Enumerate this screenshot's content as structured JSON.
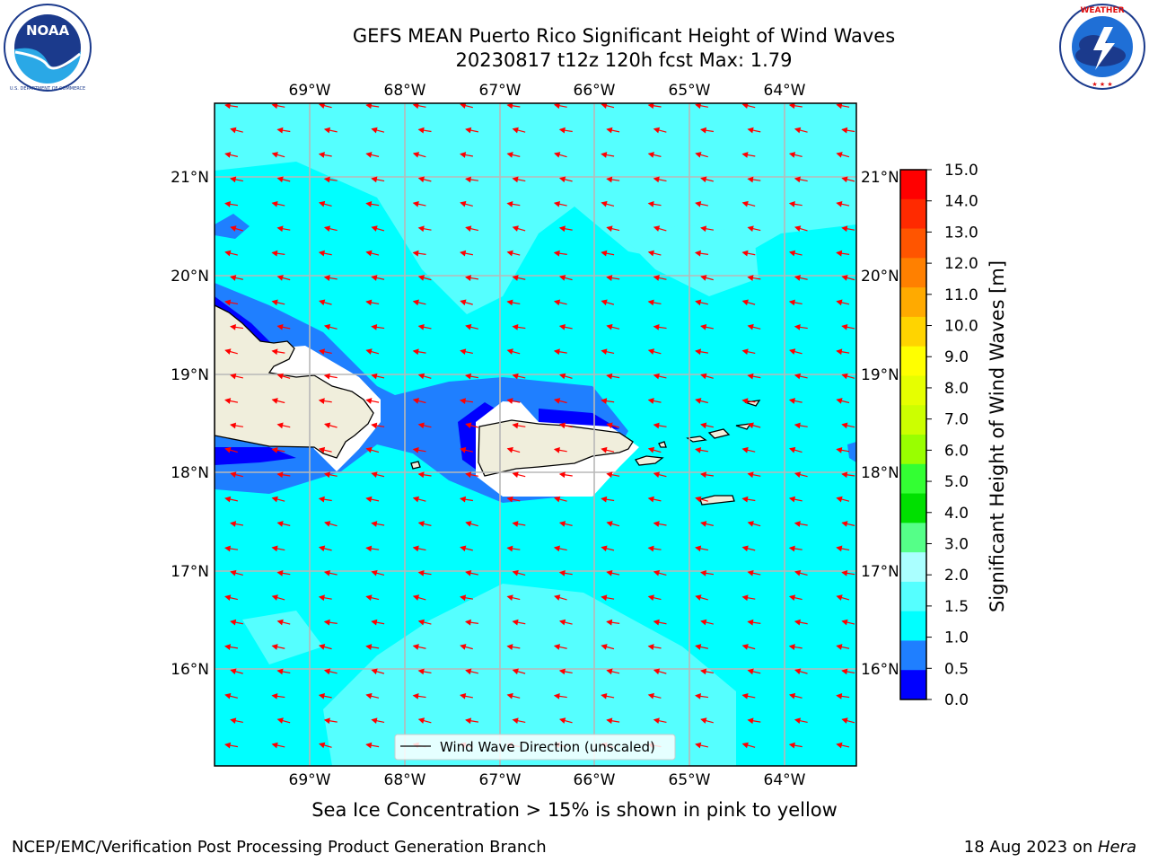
{
  "header": {
    "title_line1": "GEFS MEAN Puerto Rico Significant Height of Wind Waves",
    "title_line2": "20230817 t12z 120h fcst   Max: 1.79"
  },
  "logos": {
    "left": {
      "text": "NOAA",
      "ring_text": "NATIONAL OCEANIC AND ATMOSPHERIC ADMINISTRATION · U.S. DEPARTMENT OF COMMERCE"
    },
    "right": {
      "ring_text": "NATIONAL WEATHER SERVICE"
    }
  },
  "map": {
    "lon_labels": [
      "69°W",
      "68°W",
      "67°W",
      "66°W",
      "65°W",
      "64°W"
    ],
    "lat_labels": [
      "21°N",
      "20°N",
      "19°N",
      "18°N",
      "17°N",
      "16°N"
    ],
    "legend_label": "Wind Wave Direction (unscaled)",
    "colors": {
      "sea_1_1p5": "#00ffff",
      "sea_1p5_2": "#55ffff",
      "sea_0p5_1": "#1f7fff",
      "sea_0_0p5": "#0000ff",
      "land": "#f0eedc",
      "arrow": "#ff0000"
    }
  },
  "colorbar": {
    "label": "Significant Height of Wind Waves [m]",
    "ticks": [
      "15.0",
      "14.0",
      "13.0",
      "12.0",
      "11.0",
      "10.0",
      "9.0",
      "8.0",
      "7.0",
      "6.0",
      "5.0",
      "4.0",
      "3.0",
      "2.0",
      "1.5",
      "1.0",
      "0.5",
      "0.0"
    ],
    "colors": [
      "#ff0000",
      "#ff2a00",
      "#ff5500",
      "#ff8000",
      "#ffaa00",
      "#ffd400",
      "#ffff00",
      "#e6ff00",
      "#ccff00",
      "#99ff00",
      "#33ff33",
      "#00e000",
      "#55ff88",
      "#aaffff",
      "#55ffff",
      "#00ffff",
      "#1f7fff",
      "#0000ff"
    ]
  },
  "caption": "Sea Ice Concentration > 15% is shown in pink to yellow",
  "footer": {
    "left": "NCEP/EMC/Verification Post Processing Product Generation Branch",
    "right_prefix": "18 Aug 2023 on ",
    "right_host": "Hera"
  }
}
